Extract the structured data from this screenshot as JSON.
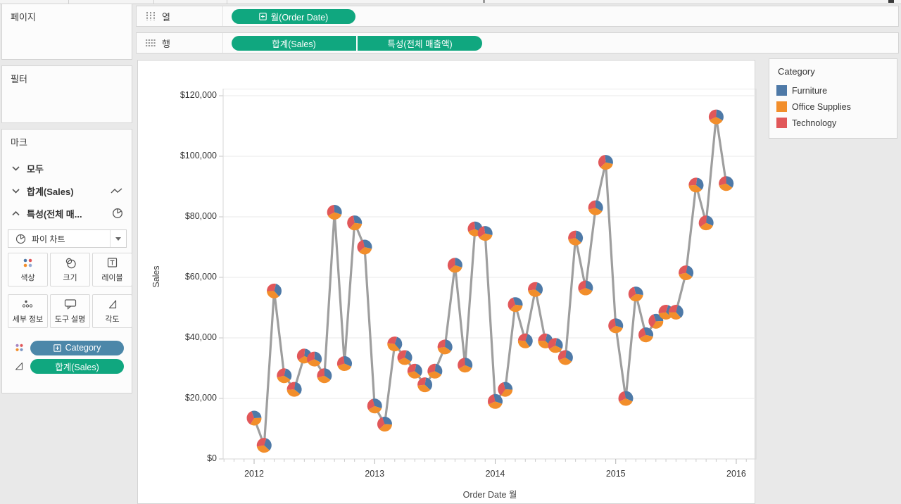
{
  "sidebar": {
    "pages_title": "페이지",
    "filters_title": "필터",
    "marks_title": "마크",
    "marks_rows": [
      {
        "label": "모두",
        "state": "collapsed"
      },
      {
        "label": "합계(Sales)",
        "state": "collapsed",
        "icon": "line-mark"
      },
      {
        "label": "특성(전체 매...",
        "state": "expanded",
        "icon": "pie-mark"
      }
    ],
    "mark_type_dropdown": {
      "value": "파이 차트"
    },
    "buttons": [
      {
        "label": "색상"
      },
      {
        "label": "크기"
      },
      {
        "label": "레이블"
      },
      {
        "label": "세부 정보"
      },
      {
        "label": "도구 설명"
      },
      {
        "label": "각도"
      }
    ],
    "mark_pills": [
      {
        "label": "Category",
        "style": "blue",
        "shelf_icon": "color-dots",
        "has_expand": true
      },
      {
        "label": "합계(Sales)",
        "style": "green",
        "shelf_icon": "angle",
        "has_expand": false
      }
    ]
  },
  "shelves": {
    "columns_label": "열",
    "rows_label": "행",
    "columns_pills": [
      {
        "label": "월(Order Date)",
        "has_expand": true
      }
    ],
    "rows_pills": [
      {
        "label": "합계(Sales)"
      },
      {
        "label": "특성(전체 매출액)"
      }
    ]
  },
  "legend": {
    "title": "Category",
    "items": [
      {
        "label": "Furniture",
        "color": "#4e79a7"
      },
      {
        "label": "Office Supplies",
        "color": "#f28e2b"
      },
      {
        "label": "Technology",
        "color": "#e15759"
      }
    ]
  },
  "chart_data": {
    "type": "line",
    "marker": "pie-by-category",
    "title": "",
    "xlabel": "Order Date 월",
    "ylabel": "Sales",
    "ylim": [
      0,
      120000
    ],
    "grid": "horizontal",
    "y_ticks": [
      0,
      20000,
      40000,
      60000,
      80000,
      100000,
      120000
    ],
    "y_tick_labels": [
      "$0",
      "$20,000",
      "$40,000",
      "$60,000",
      "$80,000",
      "$100,000",
      "$120,000"
    ],
    "x_tick_labels": [
      "2012",
      "2013",
      "2014",
      "2015",
      "2016"
    ],
    "legend_categories": [
      "Furniture",
      "Office Supplies",
      "Technology"
    ],
    "colors": {
      "Furniture": "#4e79a7",
      "Office Supplies": "#f28e2b",
      "Technology": "#e15759",
      "line": "#9e9e9e"
    },
    "pie_slice_fractions_approx": [
      0.32,
      0.36,
      0.32
    ],
    "x": [
      "2012-01",
      "2012-02",
      "2012-03",
      "2012-04",
      "2012-05",
      "2012-06",
      "2012-07",
      "2012-08",
      "2012-09",
      "2012-10",
      "2012-11",
      "2012-12",
      "2013-01",
      "2013-02",
      "2013-03",
      "2013-04",
      "2013-05",
      "2013-06",
      "2013-07",
      "2013-08",
      "2013-09",
      "2013-10",
      "2013-11",
      "2013-12",
      "2014-01",
      "2014-02",
      "2014-03",
      "2014-04",
      "2014-05",
      "2014-06",
      "2014-07",
      "2014-08",
      "2014-09",
      "2014-10",
      "2014-11",
      "2014-12",
      "2015-01",
      "2015-02",
      "2015-03",
      "2015-04",
      "2015-05",
      "2015-06",
      "2015-07",
      "2015-08",
      "2015-09",
      "2015-10",
      "2015-11",
      "2015-12"
    ],
    "values": [
      13500,
      4500,
      55500,
      27500,
      23000,
      34000,
      33000,
      27500,
      81500,
      31500,
      78000,
      70000,
      17500,
      11500,
      38000,
      33500,
      29000,
      24500,
      29000,
      37000,
      64000,
      31000,
      76000,
      74500,
      19000,
      23000,
      51000,
      39000,
      56000,
      39000,
      37500,
      33500,
      73000,
      56500,
      83000,
      98000,
      44000,
      20000,
      54500,
      41000,
      45500,
      48500,
      48500,
      61500,
      90500,
      78000,
      113000,
      91000
    ]
  }
}
